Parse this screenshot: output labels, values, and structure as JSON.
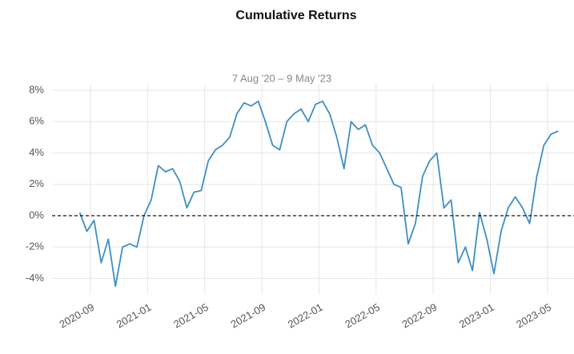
{
  "chart_data": {
    "type": "line",
    "title": "Cumulative Returns",
    "subtitle": "7 Aug '20 –  9 May '23",
    "x": [
      "2020-08",
      "2020-08",
      "2020-09",
      "2020-09",
      "2020-10",
      "2020-10",
      "2020-11",
      "2020-11",
      "2020-12",
      "2020-12",
      "2021-01",
      "2021-01",
      "2021-02",
      "2021-02",
      "2021-03",
      "2021-03",
      "2021-04",
      "2021-04",
      "2021-05",
      "2021-05",
      "2021-06",
      "2021-06",
      "2021-07",
      "2021-07",
      "2021-08",
      "2021-08",
      "2021-09",
      "2021-09",
      "2021-10",
      "2021-10",
      "2021-11",
      "2021-11",
      "2021-12",
      "2021-12",
      "2022-01",
      "2022-01",
      "2022-02",
      "2022-02",
      "2022-03",
      "2022-03",
      "2022-04",
      "2022-04",
      "2022-05",
      "2022-05",
      "2022-06",
      "2022-06",
      "2022-07",
      "2022-07",
      "2022-08",
      "2022-08",
      "2022-09",
      "2022-09",
      "2022-10",
      "2022-10",
      "2022-11",
      "2022-11",
      "2022-12",
      "2022-12",
      "2023-01",
      "2023-01",
      "2023-02",
      "2023-02",
      "2023-03",
      "2023-03",
      "2023-04",
      "2023-04",
      "2023-05",
      "2023-05"
    ],
    "series": [
      {
        "name": "Cumulative Returns",
        "color": "#3d8fc5",
        "values": [
          0.2,
          -1.0,
          -0.3,
          -3.0,
          -1.5,
          -4.5,
          -2.0,
          -1.8,
          -2.0,
          0.0,
          1.0,
          3.2,
          2.8,
          3.0,
          2.2,
          0.5,
          1.5,
          1.6,
          3.5,
          4.2,
          4.5,
          5.0,
          6.5,
          7.2,
          7.0,
          7.3,
          6.0,
          4.5,
          4.2,
          6.0,
          6.5,
          6.8,
          6.0,
          7.1,
          7.3,
          6.5,
          5.0,
          3.0,
          6.0,
          5.5,
          5.8,
          4.5,
          4.0,
          3.0,
          2.0,
          1.8,
          -1.8,
          -0.5,
          2.5,
          3.5,
          4.0,
          0.5,
          1.0,
          -3.0,
          -2.0,
          -3.5,
          0.2,
          -1.5,
          -3.7,
          -1.0,
          0.5,
          1.2,
          0.5,
          -0.5,
          2.5,
          4.5,
          5.2,
          5.4
        ]
      }
    ],
    "xticks": [
      "2020-09",
      "2021-01",
      "2021-05",
      "2021-09",
      "2022-01",
      "2022-05",
      "2022-09",
      "2023-01",
      "2023-05"
    ],
    "ylim": [
      -5,
      8
    ],
    "yticks": [
      {
        "value": -4,
        "label": "-4%"
      },
      {
        "value": -2,
        "label": "-2%"
      },
      {
        "value": 0,
        "label": "0%"
      },
      {
        "value": 2,
        "label": "2%"
      },
      {
        "value": 4,
        "label": "4%"
      },
      {
        "value": 6,
        "label": "6%"
      },
      {
        "value": 8,
        "label": "8%"
      }
    ],
    "hline": 0,
    "grid": true
  }
}
